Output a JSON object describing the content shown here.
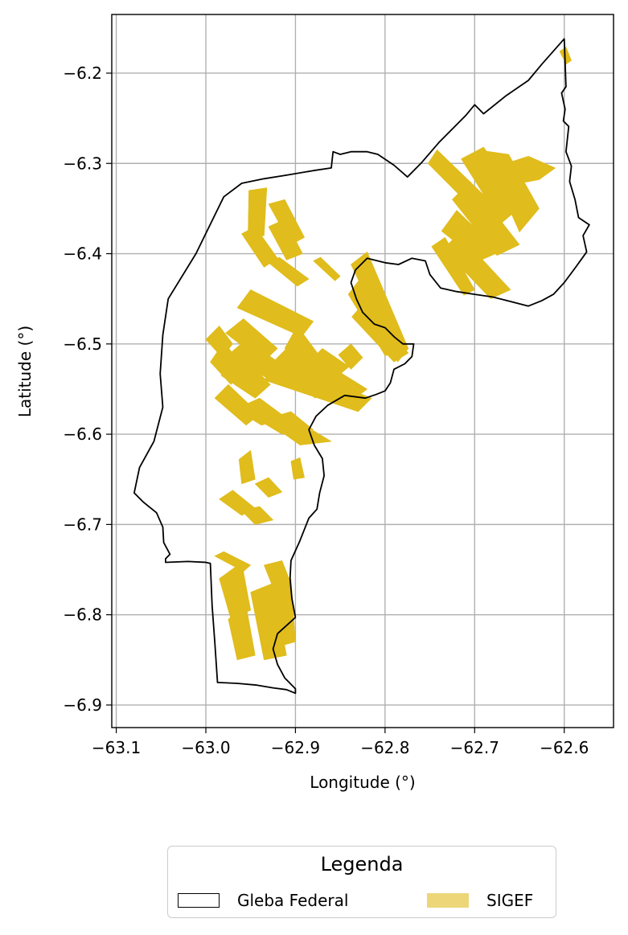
{
  "chart_data": {
    "type": "map",
    "xlabel": "Longitude (°)",
    "ylabel": "Latitude (°)",
    "xlim": [
      -63.105,
      -62.545
    ],
    "ylim": [
      -6.925,
      -6.135
    ],
    "x_ticks": [
      -63.1,
      -63.0,
      -62.9,
      -62.8,
      -62.7,
      -62.6
    ],
    "x_tick_labels": [
      "−63.1",
      "−63.0",
      "−62.9",
      "−62.8",
      "−62.7",
      "−62.6"
    ],
    "y_ticks": [
      -6.2,
      -6.3,
      -6.4,
      -6.5,
      -6.6,
      -6.7,
      -6.8,
      -6.9
    ],
    "y_tick_labels": [
      "−6.2",
      "−6.3",
      "−6.4",
      "−6.5",
      "−6.6",
      "−6.7",
      "−6.8",
      "−6.9"
    ],
    "grid": true,
    "colors": {
      "gleba_edge": "#000000",
      "sigef_fill": "#e0bc1c",
      "legend_sigef": "#ecd678",
      "grid": "#b0b0b0"
    },
    "gleba_boundary": [
      [
        -62.6,
        -6.162
      ],
      [
        -62.598,
        -6.215
      ],
      [
        -62.603,
        -6.222
      ],
      [
        -62.599,
        -6.24
      ],
      [
        -62.601,
        -6.253
      ],
      [
        -62.595,
        -6.259
      ],
      [
        -62.598,
        -6.287
      ],
      [
        -62.592,
        -6.303
      ],
      [
        -62.594,
        -6.32
      ],
      [
        -62.588,
        -6.34
      ],
      [
        -62.584,
        -6.36
      ],
      [
        -62.572,
        -6.368
      ],
      [
        -62.579,
        -6.38
      ],
      [
        -62.575,
        -6.398
      ],
      [
        -62.58,
        -6.405
      ],
      [
        -62.588,
        -6.416
      ],
      [
        -62.6,
        -6.432
      ],
      [
        -62.612,
        -6.445
      ],
      [
        -62.625,
        -6.452
      ],
      [
        -62.64,
        -6.458
      ],
      [
        -62.66,
        -6.453
      ],
      [
        -62.68,
        -6.448
      ],
      [
        -62.7,
        -6.445
      ],
      [
        -62.72,
        -6.442
      ],
      [
        -62.738,
        -6.438
      ],
      [
        -62.75,
        -6.423
      ],
      [
        -62.755,
        -6.408
      ],
      [
        -62.77,
        -6.405
      ],
      [
        -62.785,
        -6.412
      ],
      [
        -62.8,
        -6.41
      ],
      [
        -62.82,
        -6.405
      ],
      [
        -62.833,
        -6.418
      ],
      [
        -62.838,
        -6.432
      ],
      [
        -62.832,
        -6.45
      ],
      [
        -62.825,
        -6.465
      ],
      [
        -62.812,
        -6.478
      ],
      [
        -62.8,
        -6.482
      ],
      [
        -62.79,
        -6.492
      ],
      [
        -62.78,
        -6.5
      ],
      [
        -62.768,
        -6.5
      ],
      [
        -62.77,
        -6.514
      ],
      [
        -62.778,
        -6.522
      ],
      [
        -62.79,
        -6.528
      ],
      [
        -62.794,
        -6.543
      ],
      [
        -62.8,
        -6.552
      ],
      [
        -62.81,
        -6.556
      ],
      [
        -62.822,
        -6.56
      ],
      [
        -62.845,
        -6.557
      ],
      [
        -62.864,
        -6.568
      ],
      [
        -62.877,
        -6.58
      ],
      [
        -62.885,
        -6.595
      ],
      [
        -62.879,
        -6.612
      ],
      [
        -62.87,
        -6.627
      ],
      [
        -62.868,
        -6.646
      ],
      [
        -62.873,
        -6.665
      ],
      [
        -62.876,
        -6.683
      ],
      [
        -62.885,
        -6.693
      ],
      [
        -62.895,
        -6.718
      ],
      [
        -62.905,
        -6.74
      ],
      [
        -62.906,
        -6.76
      ],
      [
        -62.904,
        -6.782
      ],
      [
        -62.9,
        -6.803
      ],
      [
        -62.91,
        -6.812
      ],
      [
        -62.92,
        -6.821
      ],
      [
        -62.925,
        -6.838
      ],
      [
        -62.92,
        -6.855
      ],
      [
        -62.912,
        -6.87
      ],
      [
        -62.9,
        -6.882
      ],
      [
        -62.9,
        -6.887
      ],
      [
        -62.91,
        -6.883
      ],
      [
        -62.925,
        -6.881
      ],
      [
        -62.943,
        -6.878
      ],
      [
        -62.965,
        -6.876
      ],
      [
        -62.987,
        -6.875
      ],
      [
        -62.99,
        -6.83
      ],
      [
        -62.993,
        -6.79
      ],
      [
        -62.995,
        -6.743
      ],
      [
        -63.0,
        -6.742
      ],
      [
        -63.02,
        -6.741
      ],
      [
        -63.045,
        -6.742
      ],
      [
        -63.045,
        -6.738
      ],
      [
        -63.04,
        -6.733
      ],
      [
        -63.047,
        -6.72
      ],
      [
        -63.048,
        -6.703
      ],
      [
        -63.055,
        -6.687
      ],
      [
        -63.07,
        -6.675
      ],
      [
        -63.08,
        -6.665
      ],
      [
        -63.074,
        -6.637
      ],
      [
        -63.058,
        -6.608
      ],
      [
        -63.048,
        -6.57
      ],
      [
        -63.051,
        -6.533
      ],
      [
        -63.048,
        -6.49
      ],
      [
        -63.042,
        -6.45
      ],
      [
        -63.011,
        -6.4
      ],
      [
        -62.98,
        -6.337
      ],
      [
        -62.96,
        -6.322
      ],
      [
        -62.935,
        -6.317
      ],
      [
        -62.91,
        -6.313
      ],
      [
        -62.88,
        -6.308
      ],
      [
        -62.86,
        -6.305
      ],
      [
        -62.858,
        -6.287
      ],
      [
        -62.85,
        -6.29
      ],
      [
        -62.838,
        -6.287
      ],
      [
        -62.82,
        -6.287
      ],
      [
        -62.808,
        -6.29
      ],
      [
        -62.79,
        -6.302
      ],
      [
        -62.775,
        -6.315
      ],
      [
        -62.76,
        -6.3
      ],
      [
        -62.74,
        -6.277
      ],
      [
        -62.71,
        -6.247
      ],
      [
        -62.7,
        -6.235
      ],
      [
        -62.69,
        -6.245
      ],
      [
        -62.665,
        -6.225
      ],
      [
        -62.64,
        -6.208
      ],
      [
        -62.625,
        -6.19
      ],
      [
        -62.6,
        -6.162
      ]
    ],
    "sigef_parcels": [
      [
        [
          -62.605,
          -6.176
        ],
        [
          -62.598,
          -6.171
        ],
        [
          -62.592,
          -6.186
        ],
        [
          -62.598,
          -6.19
        ]
      ],
      [
        [
          -62.752,
          -6.3
        ],
        [
          -62.742,
          -6.285
        ],
        [
          -62.668,
          -6.356
        ],
        [
          -62.68,
          -6.372
        ]
      ],
      [
        [
          -62.715,
          -6.295
        ],
        [
          -62.69,
          -6.282
        ],
        [
          -62.645,
          -6.345
        ],
        [
          -62.67,
          -6.366
        ]
      ],
      [
        [
          -62.69,
          -6.286
        ],
        [
          -62.662,
          -6.29
        ],
        [
          -62.628,
          -6.35
        ],
        [
          -62.65,
          -6.376
        ]
      ],
      [
        [
          -62.665,
          -6.3
        ],
        [
          -62.64,
          -6.292
        ],
        [
          -62.61,
          -6.305
        ],
        [
          -62.628,
          -6.318
        ],
        [
          -62.655,
          -6.323
        ]
      ],
      [
        [
          -62.725,
          -6.34
        ],
        [
          -62.705,
          -6.32
        ],
        [
          -62.65,
          -6.39
        ],
        [
          -62.675,
          -6.402
        ]
      ],
      [
        [
          -62.737,
          -6.375
        ],
        [
          -62.72,
          -6.352
        ],
        [
          -62.672,
          -6.398
        ],
        [
          -62.695,
          -6.408
        ]
      ],
      [
        [
          -62.735,
          -6.395
        ],
        [
          -62.718,
          -6.378
        ],
        [
          -62.66,
          -6.44
        ],
        [
          -62.682,
          -6.45
        ]
      ],
      [
        [
          -62.748,
          -6.392
        ],
        [
          -62.733,
          -6.382
        ],
        [
          -62.7,
          -6.44
        ],
        [
          -62.712,
          -6.446
        ]
      ],
      [
        [
          -62.838,
          -6.412
        ],
        [
          -62.82,
          -6.398
        ],
        [
          -62.774,
          -6.505
        ],
        [
          -62.786,
          -6.52
        ]
      ],
      [
        [
          -62.841,
          -6.445
        ],
        [
          -62.828,
          -6.428
        ],
        [
          -62.783,
          -6.508
        ],
        [
          -62.8,
          -6.513
        ]
      ],
      [
        [
          -62.837,
          -6.47
        ],
        [
          -62.824,
          -6.455
        ],
        [
          -62.774,
          -6.51
        ],
        [
          -62.79,
          -6.52
        ]
      ],
      [
        [
          -62.952,
          -6.33
        ],
        [
          -62.932,
          -6.327
        ],
        [
          -62.935,
          -6.38
        ],
        [
          -62.953,
          -6.382
        ]
      ],
      [
        [
          -62.93,
          -6.345
        ],
        [
          -62.912,
          -6.34
        ],
        [
          -62.89,
          -6.382
        ],
        [
          -62.905,
          -6.39
        ]
      ],
      [
        [
          -62.93,
          -6.37
        ],
        [
          -62.912,
          -6.362
        ],
        [
          -62.892,
          -6.4
        ],
        [
          -62.91,
          -6.407
        ]
      ],
      [
        [
          -62.96,
          -6.378
        ],
        [
          -62.945,
          -6.37
        ],
        [
          -62.92,
          -6.405
        ],
        [
          -62.935,
          -6.415
        ]
      ],
      [
        [
          -62.93,
          -6.41
        ],
        [
          -62.918,
          -6.404
        ],
        [
          -62.885,
          -6.428
        ],
        [
          -62.898,
          -6.436
        ]
      ],
      [
        [
          -62.88,
          -6.408
        ],
        [
          -62.872,
          -6.404
        ],
        [
          -62.85,
          -6.425
        ],
        [
          -62.856,
          -6.43
        ]
      ],
      [
        [
          -62.965,
          -6.46
        ],
        [
          -62.95,
          -6.44
        ],
        [
          -62.88,
          -6.475
        ],
        [
          -62.893,
          -6.492
        ]
      ],
      [
        [
          -62.978,
          -6.488
        ],
        [
          -62.958,
          -6.472
        ],
        [
          -62.92,
          -6.505
        ],
        [
          -62.936,
          -6.52
        ]
      ],
      [
        [
          -62.975,
          -6.512
        ],
        [
          -62.955,
          -6.495
        ],
        [
          -62.905,
          -6.53
        ],
        [
          -62.92,
          -6.545
        ]
      ],
      [
        [
          -62.983,
          -6.535
        ],
        [
          -62.962,
          -6.51
        ],
        [
          -62.928,
          -6.545
        ],
        [
          -62.945,
          -6.56
        ]
      ],
      [
        [
          -62.99,
          -6.56
        ],
        [
          -62.975,
          -6.545
        ],
        [
          -62.94,
          -6.578
        ],
        [
          -62.955,
          -6.59
        ]
      ],
      [
        [
          -62.995,
          -6.52
        ],
        [
          -62.98,
          -6.498
        ],
        [
          -62.958,
          -6.525
        ],
        [
          -62.972,
          -6.545
        ]
      ],
      [
        [
          -63.0,
          -6.495
        ],
        [
          -62.985,
          -6.48
        ],
        [
          -62.97,
          -6.5
        ],
        [
          -62.982,
          -6.515
        ]
      ],
      [
        [
          -62.912,
          -6.505
        ],
        [
          -62.898,
          -6.48
        ],
        [
          -62.862,
          -6.528
        ],
        [
          -62.878,
          -6.538
        ]
      ],
      [
        [
          -62.925,
          -6.52
        ],
        [
          -62.905,
          -6.5
        ],
        [
          -62.86,
          -6.545
        ],
        [
          -62.878,
          -6.56
        ]
      ],
      [
        [
          -62.935,
          -6.54
        ],
        [
          -62.918,
          -6.52
        ],
        [
          -62.815,
          -6.56
        ],
        [
          -62.83,
          -6.575
        ]
      ],
      [
        [
          -62.9,
          -6.522
        ],
        [
          -62.885,
          -6.51
        ],
        [
          -62.82,
          -6.55
        ],
        [
          -62.836,
          -6.562
        ]
      ],
      [
        [
          -62.88,
          -6.515
        ],
        [
          -62.87,
          -6.505
        ],
        [
          -62.84,
          -6.525
        ],
        [
          -62.852,
          -6.535
        ]
      ],
      [
        [
          -62.852,
          -6.512
        ],
        [
          -62.838,
          -6.5
        ],
        [
          -62.825,
          -6.515
        ],
        [
          -62.838,
          -6.528
        ]
      ],
      [
        [
          -62.967,
          -6.572
        ],
        [
          -62.94,
          -6.56
        ],
        [
          -62.91,
          -6.582
        ],
        [
          -62.938,
          -6.59
        ]
      ],
      [
        [
          -62.94,
          -6.585
        ],
        [
          -62.905,
          -6.575
        ],
        [
          -62.88,
          -6.595
        ],
        [
          -62.915,
          -6.6
        ]
      ],
      [
        [
          -62.915,
          -6.598
        ],
        [
          -62.88,
          -6.596
        ],
        [
          -62.86,
          -6.608
        ],
        [
          -62.895,
          -6.612
        ]
      ],
      [
        [
          -62.963,
          -6.628
        ],
        [
          -62.95,
          -6.618
        ],
        [
          -62.945,
          -6.65
        ],
        [
          -62.96,
          -6.655
        ]
      ],
      [
        [
          -62.905,
          -6.63
        ],
        [
          -62.895,
          -6.626
        ],
        [
          -62.89,
          -6.648
        ],
        [
          -62.902,
          -6.65
        ]
      ],
      [
        [
          -62.985,
          -6.672
        ],
        [
          -62.97,
          -6.662
        ],
        [
          -62.945,
          -6.682
        ],
        [
          -62.96,
          -6.69
        ]
      ],
      [
        [
          -62.96,
          -6.685
        ],
        [
          -62.94,
          -6.68
        ],
        [
          -62.925,
          -6.695
        ],
        [
          -62.945,
          -6.7
        ]
      ],
      [
        [
          -62.945,
          -6.655
        ],
        [
          -62.93,
          -6.648
        ],
        [
          -62.915,
          -6.664
        ],
        [
          -62.93,
          -6.67
        ]
      ],
      [
        [
          -62.99,
          -6.735
        ],
        [
          -62.98,
          -6.73
        ],
        [
          -62.95,
          -6.745
        ],
        [
          -62.958,
          -6.752
        ]
      ],
      [
        [
          -62.985,
          -6.76
        ],
        [
          -62.96,
          -6.742
        ],
        [
          -62.95,
          -6.795
        ],
        [
          -62.972,
          -6.805
        ]
      ],
      [
        [
          -62.975,
          -6.805
        ],
        [
          -62.955,
          -6.79
        ],
        [
          -62.945,
          -6.845
        ],
        [
          -62.965,
          -6.85
        ]
      ],
      [
        [
          -62.95,
          -6.775
        ],
        [
          -62.925,
          -6.765
        ],
        [
          -62.91,
          -6.845
        ],
        [
          -62.935,
          -6.85
        ]
      ],
      [
        [
          -62.925,
          -6.765
        ],
        [
          -62.905,
          -6.76
        ],
        [
          -62.9,
          -6.83
        ],
        [
          -62.918,
          -6.835
        ]
      ],
      [
        [
          -62.935,
          -6.745
        ],
        [
          -62.915,
          -6.74
        ],
        [
          -62.905,
          -6.765
        ],
        [
          -62.925,
          -6.77
        ]
      ]
    ],
    "legend": {
      "title": "Legenda",
      "placement": "bottom-center",
      "entries": [
        {
          "label": "Gleba Federal",
          "style": "outline"
        },
        {
          "label": "SIGEF",
          "style": "filled"
        }
      ]
    }
  }
}
